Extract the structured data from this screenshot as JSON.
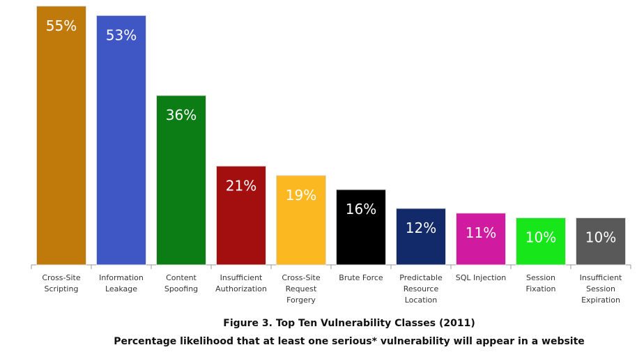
{
  "chart_data": {
    "type": "bar",
    "title": "Figure 3. Top Ten Vulnerability Classes (2011)",
    "subtitle": "Percentage likelihood that at least one serious* vulnerability will appear in a website",
    "categories": [
      "Cross-Site Scripting",
      "Information Leakage",
      "Content Spoofing",
      "Insufficient Authorization",
      "Cross-Site Request Forgery",
      "Brute Force",
      "Predictable Resource Location",
      "SQL Injection",
      "Session Fixation",
      "Insufficient Session Expiration"
    ],
    "values": [
      55,
      53,
      36,
      21,
      19,
      16,
      12,
      11,
      10,
      10
    ],
    "value_labels": [
      "55%",
      "53%",
      "36%",
      "21%",
      "19%",
      "16%",
      "12%",
      "11%",
      "10%",
      "10%"
    ],
    "colors": [
      "#c07a0c",
      "#3f57c4",
      "#0b7d14",
      "#a30e0f",
      "#fbb820",
      "#000000",
      "#132a6a",
      "#d01ba0",
      "#17e61b",
      "#595959"
    ]
  }
}
